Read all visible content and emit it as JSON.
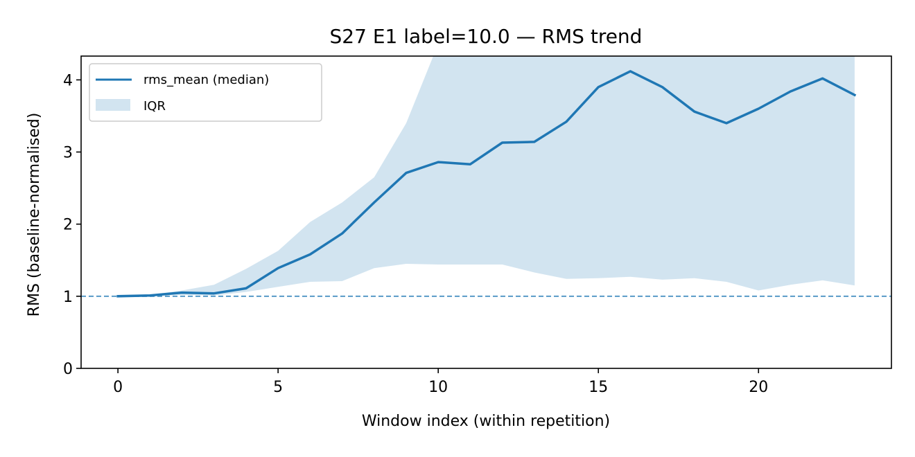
{
  "chart_data": {
    "type": "line",
    "title": "S27 E1 label=10.0 — RMS trend",
    "xlabel": "Window index (within repetition)",
    "ylabel": "RMS (baseline-normalised)",
    "xlim": [
      -1.15,
      24.15
    ],
    "ylim": [
      0,
      4.33
    ],
    "xticks": [
      0,
      5,
      10,
      15,
      20
    ],
    "yticks": [
      0,
      1,
      2,
      3,
      4
    ],
    "grid": false,
    "legend_position": "upper left",
    "series": [
      {
        "name": "rms_mean (median)",
        "kind": "line",
        "color": "#1f77b4",
        "x": [
          0,
          1,
          2,
          3,
          4,
          5,
          6,
          7,
          8,
          9,
          10,
          11,
          12,
          13,
          14,
          15,
          16,
          17,
          18,
          19,
          20,
          21,
          22,
          23
        ],
        "values": [
          1.0,
          1.01,
          1.05,
          1.04,
          1.11,
          1.39,
          1.58,
          1.87,
          2.3,
          2.71,
          2.86,
          2.83,
          3.13,
          3.14,
          3.42,
          3.9,
          4.12,
          3.9,
          3.56,
          3.4,
          3.6,
          3.84,
          4.02,
          3.79
        ]
      },
      {
        "name": "IQR",
        "kind": "band",
        "color": "#1f77b4",
        "opacity": 0.2,
        "x": [
          0,
          1,
          2,
          3,
          4,
          5,
          6,
          7,
          8,
          9,
          10,
          11,
          12,
          13,
          14,
          15,
          16,
          17,
          18,
          19,
          20,
          21,
          22,
          23
        ],
        "lower": [
          1.0,
          1.0,
          1.02,
          1.01,
          1.06,
          1.13,
          1.2,
          1.21,
          1.39,
          1.45,
          1.44,
          1.44,
          1.44,
          1.33,
          1.24,
          1.25,
          1.27,
          1.23,
          1.25,
          1.2,
          1.08,
          1.16,
          1.22,
          1.15
        ],
        "upper": [
          1.0,
          1.02,
          1.08,
          1.16,
          1.38,
          1.63,
          2.03,
          2.3,
          2.65,
          3.4,
          4.5,
          4.5,
          4.5,
          4.5,
          4.5,
          4.5,
          4.5,
          4.5,
          4.5,
          4.5,
          4.5,
          4.5,
          4.5,
          4.5
        ]
      }
    ],
    "reference_lines": [
      {
        "orientation": "horizontal",
        "y": 1.0,
        "style": "dashed",
        "color": "#1f77b4"
      }
    ]
  }
}
